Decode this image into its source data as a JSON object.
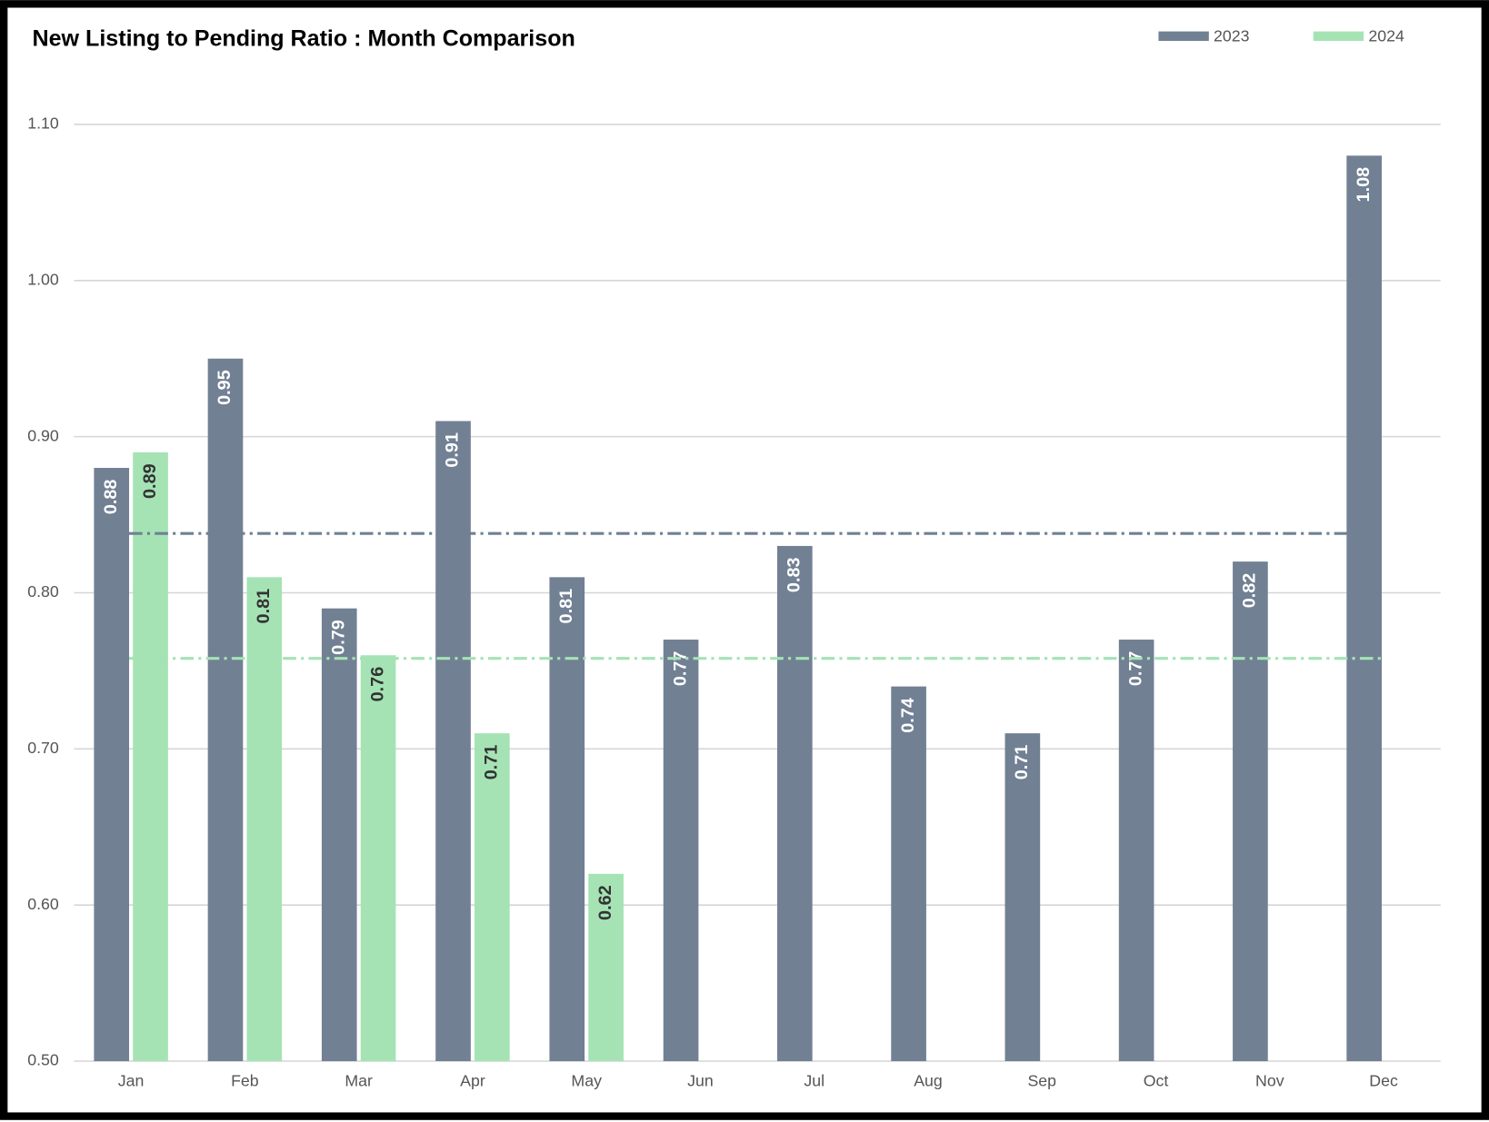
{
  "chart_data": {
    "type": "bar",
    "title": "New Listing to Pending Ratio : Month Comparison",
    "categories": [
      "Jan",
      "Feb",
      "Mar",
      "Apr",
      "May",
      "Jun",
      "Jul",
      "Aug",
      "Sep",
      "Oct",
      "Nov",
      "Dec"
    ],
    "series": [
      {
        "name": "2023",
        "color": "#718093",
        "label_color": "#ffffff",
        "average": 0.838,
        "values": [
          0.88,
          0.95,
          0.79,
          0.91,
          0.81,
          0.77,
          0.83,
          0.74,
          0.71,
          0.77,
          0.82,
          1.08
        ]
      },
      {
        "name": "2024",
        "color": "#a5e3b5",
        "label_color": "#333333",
        "average": 0.758,
        "values": [
          0.89,
          0.81,
          0.76,
          0.71,
          0.62,
          null,
          null,
          null,
          null,
          null,
          null,
          null
        ]
      }
    ],
    "ylim": [
      0.5,
      1.1
    ],
    "yticks": [
      {
        "value": 0.5,
        "label": "0.50"
      },
      {
        "value": 0.6,
        "label": "0.60"
      },
      {
        "value": 0.7,
        "label": "0.70"
      },
      {
        "value": 0.8,
        "label": "0.80"
      },
      {
        "value": 0.9,
        "label": "0.90"
      },
      {
        "value": 1.0,
        "label": "1.00"
      },
      {
        "value": 1.1,
        "label": "1.10"
      }
    ],
    "grid": true,
    "legend": "top-right"
  }
}
